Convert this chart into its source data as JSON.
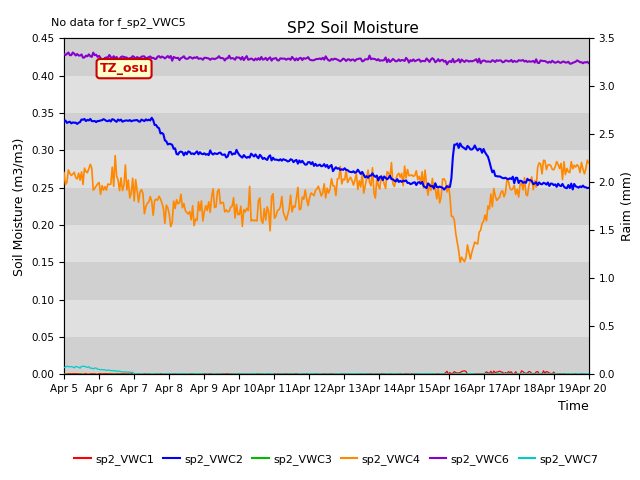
{
  "title": "SP2 Soil Moisture",
  "no_data_text": "No data for f_sp2_VWC5",
  "tz_label": "TZ_osu",
  "xlabel": "Time",
  "ylabel_left": "Soil Moisture (m3/m3)",
  "ylabel_right": "Raim (mm)",
  "ylim_left": [
    0.0,
    0.45
  ],
  "ylim_right": [
    0.0,
    3.5
  ],
  "x_tick_labels": [
    "Apr 5",
    "Apr 6",
    "Apr 7",
    "Apr 8",
    "Apr 9",
    "Apr 10",
    "Apr 11",
    "Apr 12",
    "Apr 13",
    "Apr 14",
    "Apr 15",
    "Apr 16",
    "Apr 17",
    "Apr 18",
    "Apr 19",
    "Apr 20"
  ],
  "plot_bg_color": "#e8e8e8",
  "colors": {
    "sp2_VWC1": "#ff0000",
    "sp2_VWC2": "#0000ff",
    "sp2_VWC3": "#00bb00",
    "sp2_VWC4": "#ff8800",
    "sp2_VWC6": "#8800cc",
    "sp2_VWC7": "#00cccc",
    "sp2_Rain": "#ff00ff"
  },
  "band_color_light": "#e0e0e0",
  "band_color_dark": "#cccccc",
  "title_fontsize": 11,
  "axis_fontsize": 9,
  "tick_fontsize": 7.5,
  "legend_fontsize": 8
}
